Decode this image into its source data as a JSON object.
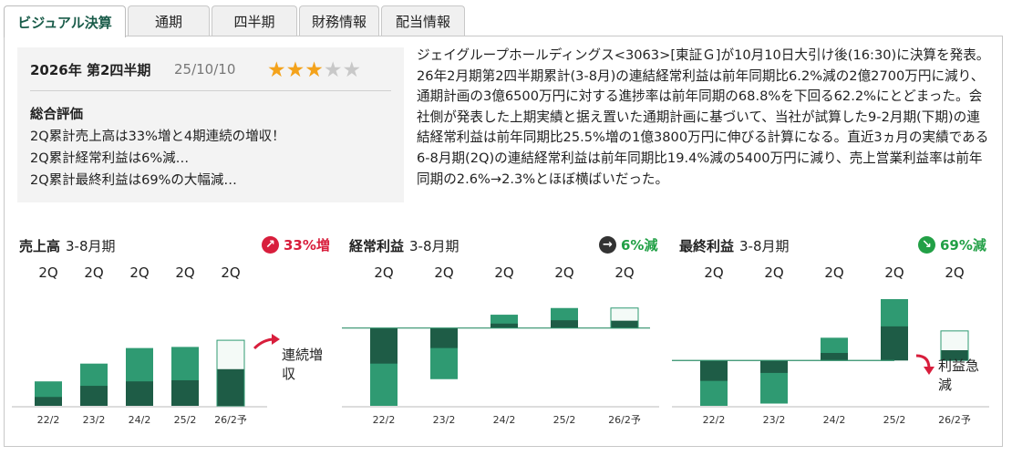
{
  "tabs": [
    {
      "label": "ビジュアル決算",
      "active": true
    },
    {
      "label": "通期",
      "active": false
    },
    {
      "label": "四半期",
      "active": false
    },
    {
      "label": "財務情報",
      "active": false
    },
    {
      "label": "配当情報",
      "active": false
    }
  ],
  "summary": {
    "period": "2026年 第2四半期",
    "date": "25/10/10",
    "rating": 3,
    "rating_max": 5,
    "title": "総合評価",
    "lines": [
      "2Q累計売上高は33%増と4期連続の増収！",
      "2Q累計経常利益は6%減…",
      "2Q累計最終利益は69%の大幅減…"
    ]
  },
  "description": "ジェイグループホールディングス<3063>[東証Ｇ]が10月10日大引け後(16:30)に決算を発表。26年2月期第2四半期累計(3-8月)の連結経常利益は前年同期比6.2%減の2億2700万円に減り、通期計画の3億6500万円に対する進捗率は前年同期の68.8%を下回る62.2%にとどまった。会社側が発表した上期実績と据え置いた通期計画に基づいて、当社が試算した9-2月期(下期)の連結経常利益は前年同期比25.5%増の1億3800万円に伸びる計算になる。直近3ヵ月の実績である6-8月期(2Q)の連結経常利益は前年同期比19.4%減の5400万円に減り、売上営業利益率は前年同期の2.6%→2.3%とほぼ横ばいだった。",
  "colors": {
    "dark_green": "#1e5c46",
    "mid_green": "#2f9a72",
    "forecast_fill": "#f4faf7",
    "red": "#d81e3c",
    "green_text": "#22a046",
    "dark_badge": "#333333"
  },
  "chart_data": [
    {
      "type": "bar",
      "title": "売上高",
      "period": "3-8月期",
      "change_label": "33%増",
      "change_dir": "up",
      "change_color": "#d81e3c",
      "badge_icon": "arrow-up-right-icon",
      "bar_label": "2Q",
      "categories": [
        "22/2",
        "23/2",
        "24/2",
        "25/2",
        "26/2予"
      ],
      "forecast_index": 4,
      "series": [
        {
          "values": [
            0.8,
            1.8,
            2.2,
            2.3,
            3.3
          ]
        },
        {
          "values": [
            2.2,
            3.8,
            5.2,
            5.3,
            5.9
          ]
        }
      ],
      "ylim": [
        0,
        9.6
      ],
      "annotation": "連続増収",
      "annotation_dir": "up"
    },
    {
      "type": "bar",
      "title": "経常利益",
      "period": "3-8月期",
      "change_label": "6%減",
      "change_dir": "right",
      "change_color": "#22a046",
      "badge_icon": "arrow-right-icon",
      "bar_label": "2Q",
      "categories": [
        "22/2",
        "23/2",
        "24/2",
        "25/2",
        "26/2予"
      ],
      "forecast_index": 4,
      "series": [
        {
          "values": [
            -1.6,
            -0.9,
            0.2,
            0.35,
            0.33
          ]
        },
        {
          "values": [
            -3.5,
            -2.3,
            0.6,
            0.9,
            0.9
          ]
        }
      ],
      "ylim": [
        -3.5,
        1.3
      ]
    },
    {
      "type": "bar",
      "title": "最終利益",
      "period": "3-8月期",
      "change_label": "69%減",
      "change_dir": "down",
      "change_color": "#22a046",
      "badge_icon": "arrow-down-right-icon",
      "bar_label": "2Q",
      "categories": [
        "22/2",
        "23/2",
        "24/2",
        "25/2",
        "26/2予"
      ],
      "forecast_index": 4,
      "series": [
        {
          "values": [
            -0.9,
            -0.55,
            0.33,
            1.5,
            0.45
          ]
        },
        {
          "values": [
            -2.0,
            -1.9,
            1.0,
            2.7,
            1.3
          ]
        }
      ],
      "ylim": [
        -2.0,
        2.7
      ],
      "annotation": "利益急減",
      "annotation_dir": "down"
    }
  ]
}
